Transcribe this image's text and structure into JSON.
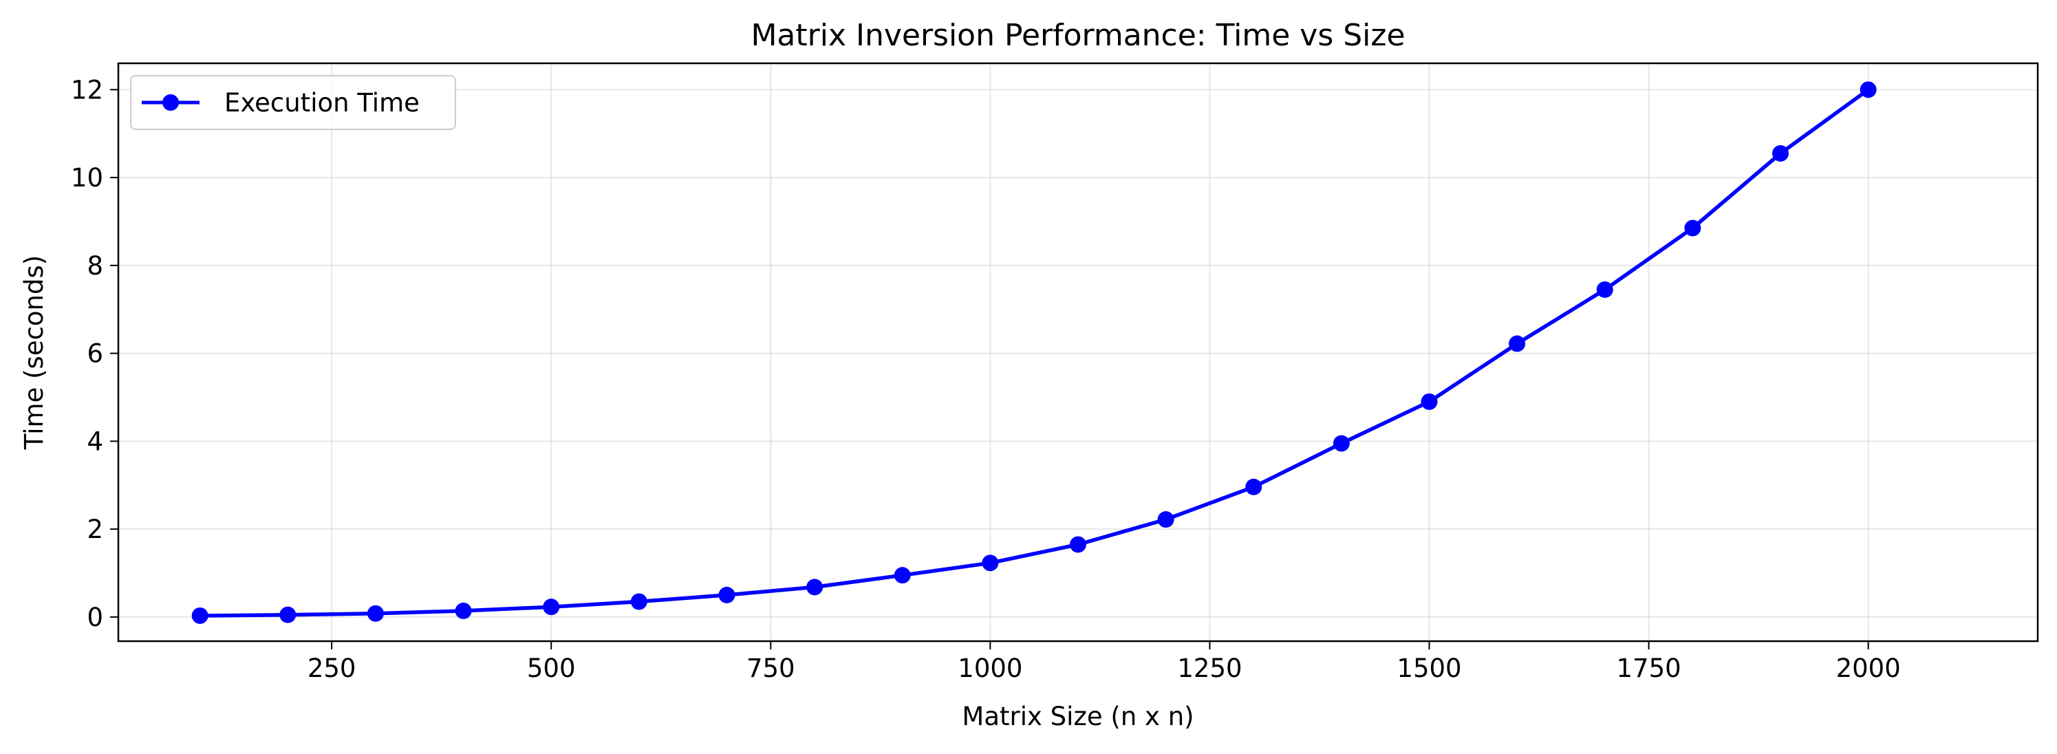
{
  "chart_data": {
    "type": "line",
    "title": "Matrix Inversion Performance: Time vs Size",
    "xlabel": "Matrix Size (n x n)",
    "ylabel": "Time (seconds)",
    "xlim": [
      7,
      2193
    ],
    "ylim": [
      -0.55,
      12.6
    ],
    "xticks": [
      250,
      500,
      750,
      1000,
      1250,
      1500,
      1750,
      2000
    ],
    "yticks": [
      0,
      2,
      4,
      6,
      8,
      10,
      12
    ],
    "grid": true,
    "legend_position": "top-left",
    "series": [
      {
        "name": "Execution Time",
        "color": "#0000ff",
        "marker": "circle",
        "x": [
          100,
          200,
          300,
          400,
          500,
          600,
          700,
          800,
          900,
          1000,
          1100,
          1200,
          1300,
          1400,
          1500,
          1600,
          1700,
          1800,
          1900,
          2000
        ],
        "y": [
          0.03,
          0.05,
          0.08,
          0.14,
          0.23,
          0.35,
          0.5,
          0.68,
          0.95,
          1.23,
          1.65,
          2.22,
          2.96,
          3.95,
          4.9,
          6.22,
          7.45,
          8.85,
          10.55,
          12.0
        ]
      }
    ]
  }
}
